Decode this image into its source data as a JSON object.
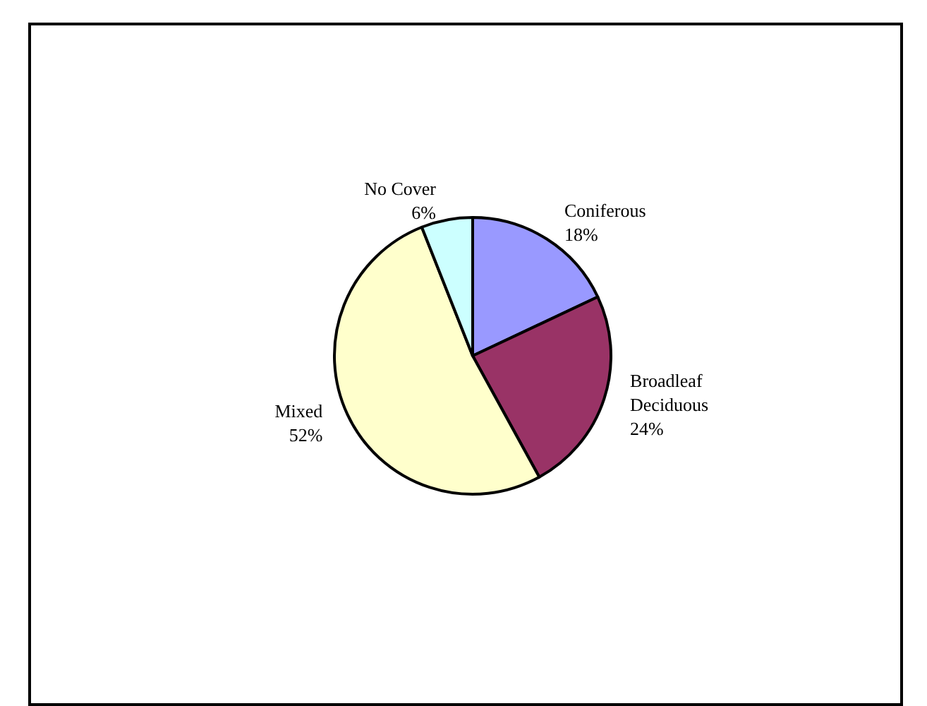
{
  "chart_data": {
    "type": "pie",
    "categories": [
      "Coniferous",
      "Broadleaf Deciduous",
      "Mixed",
      "No Cover"
    ],
    "values": [
      18,
      24,
      52,
      6
    ],
    "colors": [
      "#9999ff",
      "#993366",
      "#ffffcc",
      "#ccffff"
    ],
    "value_labels": [
      "18%",
      "24%",
      "52%",
      "6%"
    ]
  }
}
